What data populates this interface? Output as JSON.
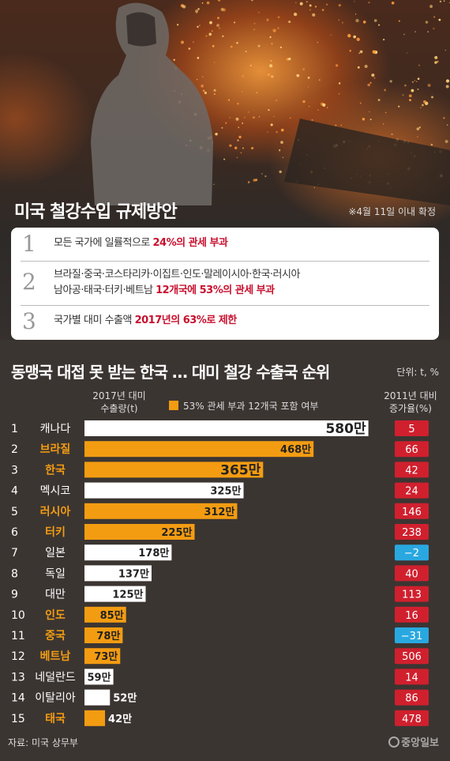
{
  "plan": {
    "title": "미국 철강수입 규제방안",
    "note": "※4월 11일 이내 확정",
    "items": [
      {
        "num": "1",
        "text": "모든 국가에 일률적으로 ",
        "highlight": "24%의 관세 부과"
      },
      {
        "num": "2",
        "text": "브라질·중국·코스타리카·이집트·인도·말레이시아·한국·러시아",
        "text2": "남아공·태국·터키·베트남 ",
        "highlight": "12개국에 53%의 관세 부과"
      },
      {
        "num": "3",
        "text": "국가별 대미 수출액 ",
        "highlight": "2017년의 63%로 제한"
      }
    ]
  },
  "ranking": {
    "title": "동맹국 대접 못 받는 한국 … 대미 철강 수출국 순위",
    "unit": "단위: t, %",
    "vol_header_1": "2017년 대미",
    "vol_header_2": "수출량(t)",
    "legend": "53% 관세 부과 12개국 포함 여부",
    "rate_header_1": "2011년 대비",
    "rate_header_2": "증가율(%)"
  },
  "colors": {
    "orange": "#f39c12",
    "white_bar": "#ffffff",
    "red": "#d0202e",
    "blue": "#29a8e0",
    "highlight_text": "#f39c12"
  },
  "chart_data": {
    "type": "bar",
    "orientation": "horizontal",
    "categories": [
      "캐나다",
      "브라질",
      "한국",
      "멕시코",
      "러시아",
      "터키",
      "일본",
      "독일",
      "대만",
      "인도",
      "중국",
      "베트남",
      "네덜란드",
      "이탈리아",
      "태국"
    ],
    "ranks": [
      "1",
      "2",
      "3",
      "4",
      "5",
      "6",
      "7",
      "8",
      "9",
      "10",
      "11",
      "12",
      "13",
      "14",
      "15"
    ],
    "values": [
      580,
      468,
      365,
      325,
      312,
      225,
      178,
      137,
      125,
      85,
      78,
      73,
      59,
      52,
      42
    ],
    "value_labels": [
      "580만",
      "468만",
      "365만",
      "325만",
      "312만",
      "225만",
      "178만",
      "137만",
      "125만",
      "85만",
      "78만",
      "73만",
      "59만",
      "52만",
      "42만"
    ],
    "in_53pct_group": [
      false,
      true,
      true,
      false,
      true,
      true,
      false,
      false,
      false,
      true,
      true,
      true,
      false,
      false,
      true
    ],
    "growth_rates": [
      5,
      66,
      42,
      24,
      146,
      238,
      -2,
      40,
      113,
      16,
      -31,
      506,
      14,
      86,
      478
    ],
    "growth_labels": [
      "5",
      "66",
      "42",
      "24",
      "146",
      "238",
      "−2",
      "40",
      "113",
      "16",
      "−31",
      "506",
      "14",
      "86",
      "478"
    ],
    "xlim": [
      0,
      600
    ]
  },
  "footer": {
    "source": "자료: 미국 상무부",
    "logo": "중앙일보"
  }
}
